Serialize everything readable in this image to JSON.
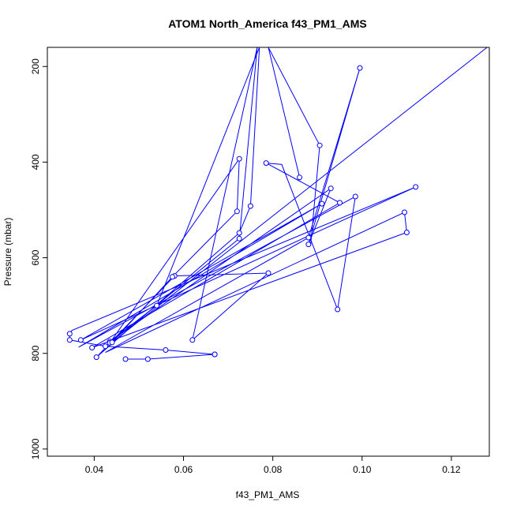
{
  "chart_data": {
    "type": "line",
    "title": "ATOM1 North_America f43_PM1_AMS",
    "xlabel": "f43_PM1_AMS",
    "ylabel": "Pressure (mbar)",
    "xlim": [
      0.0295,
      0.1285
    ],
    "ylim": [
      1015,
      160
    ],
    "y_axis_inverted": true,
    "grid": false,
    "legend": "none",
    "x_ticks": [
      0.04,
      0.06,
      0.08,
      0.1,
      0.12
    ],
    "x_tick_labels": [
      "0.04",
      "0.06",
      "0.08",
      "0.10",
      "0.12"
    ],
    "y_ticks": [
      200,
      400,
      600,
      800,
      1000
    ],
    "y_tick_labels": [
      "200",
      "400",
      "600",
      "800",
      "1000"
    ],
    "series": [
      {
        "color": "#0000ff",
        "marker": "open-circle",
        "points": [
          {
            "x": 0.067,
            "y": 802
          },
          {
            "x": 0.056,
            "y": 793
          },
          {
            "x": 0.0425,
            "y": 785
          },
          {
            "x": 0.0345,
            "y": 772
          },
          {
            "x": 0.0345,
            "y": 759
          },
          {
            "x": 0.035,
            "y": 752,
            "marker": false
          },
          {
            "x": 0.112,
            "y": 452
          },
          {
            "x": 0.037,
            "y": 772
          },
          {
            "x": 0.091,
            "y": 487
          },
          {
            "x": 0.0365,
            "y": 787,
            "marker": false
          },
          {
            "x": 0.0985,
            "y": 472
          },
          {
            "x": 0.0945,
            "y": 708
          },
          {
            "x": 0.082,
            "y": 405,
            "marker": false
          },
          {
            "x": 0.0785,
            "y": 402
          },
          {
            "x": 0.095,
            "y": 485
          },
          {
            "x": 0.0395,
            "y": 788
          },
          {
            "x": 0.11,
            "y": 547
          },
          {
            "x": 0.1095,
            "y": 505
          },
          {
            "x": 0.0425,
            "y": 798,
            "marker": false
          },
          {
            "x": 0.088,
            "y": 558
          },
          {
            "x": 0.0995,
            "y": 203
          },
          {
            "x": 0.088,
            "y": 572
          },
          {
            "x": 0.093,
            "y": 455
          },
          {
            "x": 0.0435,
            "y": 775
          },
          {
            "x": 0.054,
            "y": 700
          },
          {
            "x": 0.077,
            "y": 160,
            "marker": false
          },
          {
            "x": 0.075,
            "y": 492
          },
          {
            "x": 0.0725,
            "y": 548
          },
          {
            "x": 0.0405,
            "y": 808
          },
          {
            "x": 0.058,
            "y": 638
          },
          {
            "x": 0.079,
            "y": 632
          },
          {
            "x": 0.062,
            "y": 772
          },
          {
            "x": 0.0765,
            "y": 160,
            "marker": false
          },
          {
            "x": 0.0725,
            "y": 560
          },
          {
            "x": 0.0435,
            "y": 778
          },
          {
            "x": 0.0725,
            "y": 393
          },
          {
            "x": 0.072,
            "y": 503
          },
          {
            "x": 0.0575,
            "y": 640
          },
          {
            "x": 0.044,
            "y": 777
          },
          {
            "x": 0.128,
            "y": 160,
            "marker": false
          }
        ]
      },
      {
        "color": "#0000ff",
        "marker": "open-circle",
        "points": [
          {
            "x": 0.086,
            "y": 432
          },
          {
            "x": 0.079,
            "y": 160,
            "marker": false
          },
          {
            "x": 0.0905,
            "y": 365
          },
          {
            "x": 0.0885,
            "y": 572,
            "marker": false
          }
        ]
      },
      {
        "color": "#0000ff",
        "marker": "open-circle",
        "points": [
          {
            "x": 0.067,
            "y": 802
          },
          {
            "x": 0.052,
            "y": 812
          },
          {
            "x": 0.047,
            "y": 812
          }
        ]
      }
    ]
  }
}
